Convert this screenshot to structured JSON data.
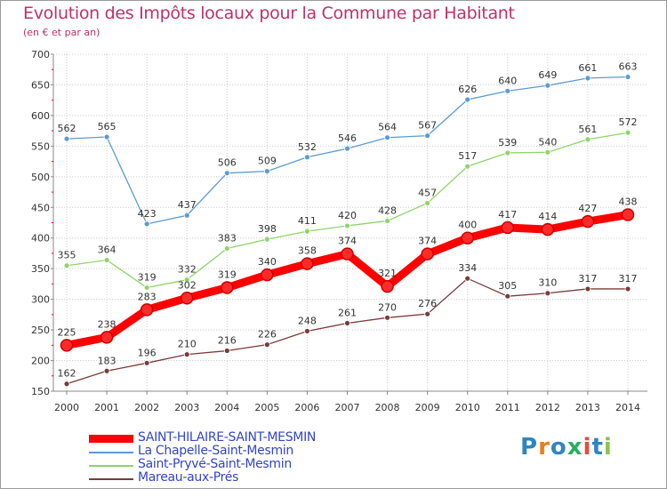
{
  "title": "Evolution des Impôts locaux pour la Commune par Habitant",
  "subtitle": "(en € et par an)",
  "logo": {
    "text": "Proxiti",
    "letters": [
      "P",
      "r",
      "o",
      "x",
      "i",
      "t",
      "i"
    ],
    "colors": [
      "#2e86c1",
      "#e67e22",
      "#2e86c1",
      "#27ae60",
      "#e74c3c",
      "#2e86c1",
      "#8bc34a"
    ]
  },
  "chart_data": {
    "type": "line",
    "title": "Evolution des Impôts locaux pour la Commune par Habitant",
    "subtitle": "(en € et par an)",
    "x": [
      "2000",
      "2001",
      "2002",
      "2003",
      "2004",
      "2005",
      "2006",
      "2007",
      "2008",
      "2009",
      "2010",
      "2011",
      "2012",
      "2013",
      "2014"
    ],
    "ylim": [
      150,
      700
    ],
    "yticks": [
      150,
      200,
      250,
      300,
      350,
      400,
      450,
      500,
      550,
      600,
      650,
      700
    ],
    "grid": true,
    "legend_position": "bottom-left",
    "series": [
      {
        "name": "La Chapelle-Saint-Mesmin",
        "color": "#5b9bd5",
        "values": [
          562,
          565,
          423,
          437,
          506,
          509,
          532,
          546,
          564,
          567,
          626,
          640,
          649,
          661,
          663
        ],
        "labels": [
          "562",
          "565",
          "423",
          "437",
          "506",
          "509",
          "532",
          "546",
          "564",
          "567",
          "626",
          "640",
          "649",
          "661",
          "663"
        ]
      },
      {
        "name": "Saint-Pryvé-Saint-Mesmin",
        "color": "#8fd46a",
        "values": [
          355,
          364,
          319,
          332,
          383,
          398,
          411,
          420,
          428,
          457,
          517,
          539,
          540,
          561,
          572
        ],
        "labels": [
          "355",
          "364",
          "319",
          "332",
          "383",
          "398",
          "411",
          "420",
          "428",
          "457",
          "517",
          "539",
          "540",
          "561",
          "572"
        ]
      },
      {
        "name": "Mareau-aux-Prés",
        "color": "#7b3a3a",
        "values": [
          162,
          183,
          196,
          210,
          216,
          226,
          248,
          261,
          270,
          276,
          334,
          305,
          310,
          317,
          317
        ],
        "labels": [
          "162",
          "183",
          "196",
          "210",
          "216",
          "226",
          "248",
          "261",
          "270",
          "276",
          "334",
          "305",
          "310",
          "317",
          "317"
        ]
      },
      {
        "name": "SAINT-HILAIRE-SAINT-MESMIN",
        "color": "#ff0000",
        "values": [
          225,
          238,
          283,
          302,
          319,
          340,
          358,
          374,
          321,
          374,
          400,
          417,
          414,
          427,
          438
        ],
        "labels": [
          "225",
          "238",
          "283",
          "302",
          "319",
          "340",
          "358",
          "374",
          "321",
          "374",
          "400",
          "417",
          "414",
          "427",
          "438"
        ]
      }
    ],
    "legend": [
      "SAINT-HILAIRE-SAINT-MESMIN",
      "La Chapelle-Saint-Mesmin",
      "Saint-Pryvé-Saint-Mesmin",
      "Mareau-aux-Prés"
    ]
  }
}
